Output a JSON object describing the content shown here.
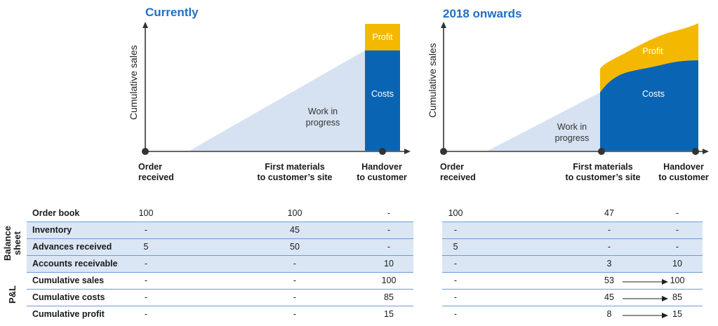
{
  "chart_data": [
    {
      "type": "area",
      "title": "Currently",
      "ylabel": "Cumulative sales",
      "x_milestones": [
        {
          "label": "Order\nreceived"
        },
        {
          "label": "First materials\nto customer’s site"
        },
        {
          "label": "Handover\nto customer"
        }
      ],
      "regions": [
        {
          "name": "Work in\nprogress",
          "color": "#d6e1f1"
        },
        {
          "name": "Costs",
          "color": "#0a64b4",
          "value": 85
        },
        {
          "name": "Profit",
          "color": "#f5b800",
          "value": 15
        }
      ]
    },
    {
      "type": "area",
      "title": "2018 onwards",
      "ylabel": "Cumulative sales",
      "x_milestones": [
        {
          "label": "Order\nreceived"
        },
        {
          "label": "First materials\nto customer’s site"
        },
        {
          "label": "Handover\nto customer"
        }
      ],
      "regions": [
        {
          "name": "Work in\nprogress",
          "color": "#d6e1f1"
        },
        {
          "name": "Costs",
          "color": "#0a64b4",
          "start": 45,
          "end": 85
        },
        {
          "name": "Profit",
          "color": "#f5b800",
          "start": 8,
          "end": 15
        }
      ]
    },
    {
      "type": "table",
      "groups": [
        {
          "label": "Balance\nsheet",
          "rows": [
            "Order book",
            "Inventory",
            "Advances received",
            "Accounts receivable"
          ]
        },
        {
          "label": "P&L",
          "rows": [
            "Cumulative sales",
            "Cumulative costs",
            "Cumulative profit"
          ]
        }
      ],
      "rows": [
        {
          "label": "Order book",
          "currently": [
            "100",
            "100",
            "-"
          ],
          "onwards": [
            "100",
            "47",
            "-"
          ]
        },
        {
          "label": "Inventory",
          "currently": [
            "-",
            "45",
            "-"
          ],
          "onwards": [
            "-",
            "-",
            "-"
          ]
        },
        {
          "label": "Advances received",
          "currently": [
            "5",
            "50",
            "-"
          ],
          "onwards": [
            "5",
            "-",
            "-"
          ]
        },
        {
          "label": "Accounts receivable",
          "currently": [
            "-",
            "-",
            "10"
          ],
          "onwards": [
            "-",
            "3",
            "10"
          ]
        },
        {
          "label": "Cumulative sales",
          "currently": [
            "-",
            "-",
            "100"
          ],
          "onwards": [
            "-",
            "53",
            "100"
          ],
          "arrow": true
        },
        {
          "label": "Cumulative costs",
          "currently": [
            "-",
            "-",
            "85"
          ],
          "onwards": [
            "-",
            "45",
            "85"
          ],
          "arrow": true
        },
        {
          "label": "Cumulative profit",
          "currently": [
            "-",
            "-",
            "15"
          ],
          "onwards": [
            "-",
            "8",
            "15"
          ],
          "arrow": true
        }
      ]
    }
  ],
  "colors": {
    "title": "#1f6fc5",
    "wip": "#d6e1f1",
    "costs": "#0a64b4",
    "profit": "#f5b800",
    "row_shade": "#dbe6f5",
    "rule": "#6f9ad2"
  }
}
